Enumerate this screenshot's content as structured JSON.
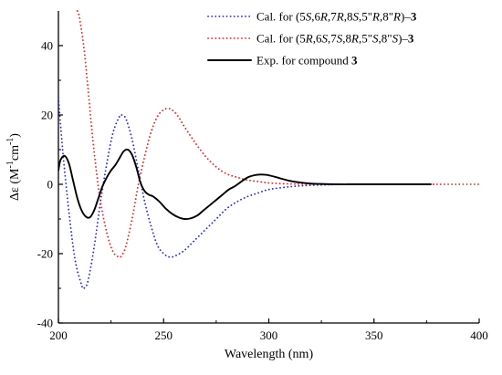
{
  "chart_data": {
    "type": "line",
    "xlabel": "Wavelength (nm)",
    "ylabel": "Δε (M⁻¹cm⁻¹)",
    "xlim": [
      200,
      400
    ],
    "ylim": [
      -40,
      50
    ],
    "xticks": [
      200,
      250,
      300,
      350,
      400
    ],
    "yticks": [
      -40,
      -20,
      0,
      20,
      40
    ],
    "grid": false,
    "legend_position": "top-right",
    "series": [
      {
        "name": "Cal. for (5S,6R,7R,8S,5″R,8″R)–3",
        "color": "#2b2bd6",
        "style": "dotted",
        "x": [
          200,
          202,
          205,
          208,
          211,
          212,
          214,
          217,
          220,
          223,
          226,
          229,
          230,
          232,
          235,
          238,
          241,
          244,
          247,
          250,
          253,
          256,
          260,
          265,
          270,
          275,
          280,
          285,
          290,
          295,
          300,
          310,
          320,
          330,
          340,
          350,
          360,
          370,
          380
        ],
        "values": [
          25,
          10,
          -8,
          -22,
          -29,
          -30,
          -28,
          -18,
          -5,
          6,
          15,
          19.5,
          20,
          19,
          13,
          4,
          -5,
          -12,
          -17.5,
          -20,
          -21,
          -20.5,
          -19,
          -16,
          -13,
          -10,
          -7,
          -5,
          -3.5,
          -2.5,
          -1.5,
          -0.7,
          -0.3,
          -0.1,
          0,
          0,
          0,
          0,
          0
        ]
      },
      {
        "name": "Cal. for (5R,6S,7S,8R,5″S,8″S)–3",
        "color": "#e8262b",
        "style": "dotted",
        "x": [
          209,
          210,
          212,
          214,
          216,
          218,
          220,
          223,
          226,
          229,
          230,
          232,
          235,
          238,
          241,
          244,
          247,
          250,
          252,
          254,
          257,
          260,
          265,
          270,
          275,
          280,
          285,
          290,
          295,
          300,
          310,
          320,
          330,
          340,
          350,
          360,
          370,
          380,
          390,
          400
        ],
        "values": [
          50,
          48,
          40,
          28,
          15,
          4,
          -5,
          -14,
          -19.5,
          -21,
          -20.5,
          -18,
          -10,
          0,
          8,
          15,
          19.5,
          21.5,
          21.8,
          21.5,
          19.5,
          16.5,
          12,
          8,
          5,
          3,
          2,
          1.2,
          0.8,
          0.4,
          0.1,
          0,
          0,
          0,
          0,
          0,
          0,
          0,
          0,
          0
        ]
      },
      {
        "name": "Exp. for compound 3",
        "color": "#000000",
        "style": "solid",
        "x": [
          200,
          201,
          203,
          205,
          207,
          209,
          211,
          213,
          215,
          217,
          219,
          221,
          223,
          225,
          227,
          229,
          231,
          233,
          235,
          237,
          239,
          241,
          243,
          245,
          248,
          251,
          254,
          257,
          260,
          263,
          266,
          269,
          272,
          275,
          278,
          281,
          284,
          287,
          290,
          293,
          296,
          299,
          302,
          305,
          310,
          315,
          320,
          325,
          330,
          340,
          350,
          360,
          370,
          377
        ],
        "values": [
          4,
          7,
          8.2,
          6,
          1,
          -4,
          -7.5,
          -9.3,
          -9.5,
          -7.5,
          -4,
          -0.5,
          2,
          4,
          5.5,
          7.5,
          9.5,
          10,
          8.5,
          5,
          0.5,
          -2,
          -3,
          -3.5,
          -5,
          -7,
          -8.5,
          -9.5,
          -10,
          -9.8,
          -9,
          -7.5,
          -6,
          -4.5,
          -3,
          -1.5,
          -0.5,
          0.8,
          2,
          2.6,
          2.8,
          2.7,
          2.3,
          1.8,
          1,
          0.5,
          0.2,
          0.1,
          0,
          0,
          0,
          0,
          0,
          0
        ]
      }
    ]
  },
  "legend_entries": [
    {
      "prefix": "Cal. for (5",
      "parts": [
        [
          "S",
          true
        ],
        [
          ",6",
          false
        ],
        [
          "R",
          true
        ],
        [
          ",7",
          false
        ],
        [
          "R",
          true
        ],
        [
          ",8",
          false
        ],
        [
          "S",
          true
        ],
        [
          ",5\"",
          false
        ],
        [
          "R",
          true
        ],
        [
          ",8\"",
          false
        ],
        [
          "R",
          true
        ],
        [
          ")–",
          false
        ],
        [
          "3",
          "bold"
        ]
      ]
    },
    {
      "prefix": "Cal. for (5",
      "parts": [
        [
          "R",
          true
        ],
        [
          ",6",
          false
        ],
        [
          "S",
          true
        ],
        [
          ",7",
          false
        ],
        [
          "S",
          true
        ],
        [
          ",8",
          false
        ],
        [
          "R",
          true
        ],
        [
          ",5\"",
          false
        ],
        [
          "S",
          true
        ],
        [
          ",8\"",
          false
        ],
        [
          "S",
          true
        ],
        [
          ")–",
          false
        ],
        [
          "3",
          "bold"
        ]
      ]
    },
    {
      "prefix": "Exp. for compound ",
      "parts": [
        [
          "3",
          "bold"
        ]
      ]
    }
  ]
}
